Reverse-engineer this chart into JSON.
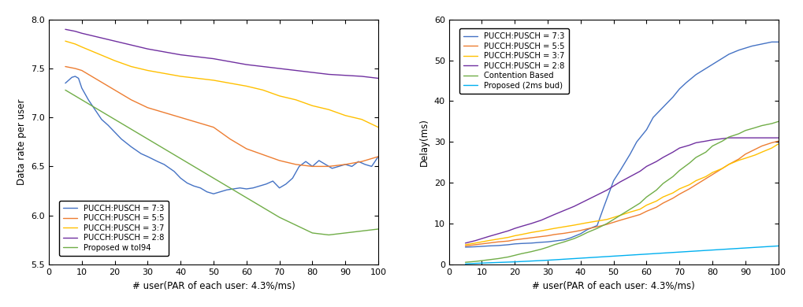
{
  "left": {
    "xlabel": "# user(PAR of each user: 4.3%/ms)",
    "ylabel": "Data rate per user",
    "xlim": [
      0,
      100
    ],
    "ylim": [
      5.5,
      8.0
    ],
    "yticks": [
      5.5,
      6.0,
      6.5,
      7.0,
      7.5,
      8.0
    ],
    "xticks": [
      0,
      10,
      20,
      30,
      40,
      50,
      60,
      70,
      80,
      90,
      100
    ],
    "series": [
      {
        "label": "PUCCH:PUSCH = 7:3",
        "color": "#4472C4",
        "x": [
          5,
          6,
          7,
          8,
          9,
          10,
          12,
          14,
          16,
          18,
          20,
          22,
          25,
          28,
          30,
          33,
          35,
          38,
          40,
          42,
          44,
          46,
          48,
          50,
          52,
          54,
          56,
          58,
          60,
          62,
          64,
          66,
          68,
          70,
          72,
          74,
          76,
          78,
          80,
          82,
          84,
          86,
          88,
          90,
          92,
          94,
          96,
          98,
          100
        ],
        "y": [
          7.35,
          7.38,
          7.41,
          7.42,
          7.4,
          7.3,
          7.18,
          7.08,
          6.98,
          6.92,
          6.85,
          6.78,
          6.7,
          6.63,
          6.6,
          6.55,
          6.52,
          6.45,
          6.38,
          6.33,
          6.3,
          6.28,
          6.24,
          6.22,
          6.24,
          6.26,
          6.27,
          6.28,
          6.27,
          6.28,
          6.3,
          6.32,
          6.35,
          6.28,
          6.32,
          6.38,
          6.5,
          6.55,
          6.5,
          6.56,
          6.52,
          6.48,
          6.5,
          6.52,
          6.5,
          6.55,
          6.52,
          6.5,
          6.6
        ]
      },
      {
        "label": "PUCCH:PUSCH = 5:5",
        "color": "#ED7D31",
        "x": [
          5,
          8,
          10,
          15,
          20,
          25,
          30,
          35,
          40,
          45,
          50,
          55,
          60,
          65,
          70,
          75,
          80,
          85,
          90,
          95,
          100
        ],
        "y": [
          7.52,
          7.5,
          7.48,
          7.38,
          7.28,
          7.18,
          7.1,
          7.05,
          7.0,
          6.95,
          6.9,
          6.78,
          6.68,
          6.62,
          6.56,
          6.52,
          6.5,
          6.5,
          6.52,
          6.55,
          6.6
        ]
      },
      {
        "label": "PUCCH:PUSCH = 3:7",
        "color": "#FFC000",
        "x": [
          5,
          8,
          10,
          15,
          20,
          25,
          30,
          35,
          40,
          45,
          50,
          55,
          60,
          65,
          70,
          75,
          80,
          85,
          90,
          95,
          100
        ],
        "y": [
          7.78,
          7.75,
          7.72,
          7.65,
          7.58,
          7.52,
          7.48,
          7.45,
          7.42,
          7.4,
          7.38,
          7.35,
          7.32,
          7.28,
          7.22,
          7.18,
          7.12,
          7.08,
          7.02,
          6.98,
          6.9
        ]
      },
      {
        "label": "PUCCH:PUSCH = 2:8",
        "color": "#7030A0",
        "x": [
          5,
          8,
          10,
          15,
          20,
          25,
          30,
          35,
          40,
          45,
          50,
          55,
          60,
          65,
          70,
          75,
          80,
          85,
          90,
          95,
          100
        ],
        "y": [
          7.9,
          7.88,
          7.86,
          7.82,
          7.78,
          7.74,
          7.7,
          7.67,
          7.64,
          7.62,
          7.6,
          7.57,
          7.54,
          7.52,
          7.5,
          7.48,
          7.46,
          7.44,
          7.43,
          7.42,
          7.4
        ]
      },
      {
        "label": "Proposed w tol94",
        "color": "#70AD47",
        "x": [
          5,
          8,
          10,
          15,
          20,
          25,
          30,
          35,
          40,
          45,
          50,
          55,
          60,
          65,
          70,
          75,
          80,
          85,
          90,
          95,
          100
        ],
        "y": [
          7.28,
          7.22,
          7.18,
          7.08,
          6.98,
          6.88,
          6.78,
          6.68,
          6.58,
          6.48,
          6.38,
          6.28,
          6.18,
          6.08,
          5.98,
          5.9,
          5.82,
          5.8,
          5.82,
          5.84,
          5.86
        ]
      }
    ],
    "legend_loc": "lower left"
  },
  "right": {
    "xlabel": "# user(PAR of each user: 4.3%/ms)",
    "ylabel": "Delay(ms)",
    "xlim": [
      0,
      100
    ],
    "ylim": [
      0,
      60
    ],
    "yticks": [
      0,
      10,
      20,
      30,
      40,
      50,
      60
    ],
    "xticks": [
      0,
      10,
      20,
      30,
      40,
      50,
      60,
      70,
      80,
      90,
      100
    ],
    "series": [
      {
        "label": "PUCCH:PUSCH = 7:3",
        "color": "#4472C4",
        "x": [
          5,
          8,
          10,
          12,
          15,
          18,
          20,
          22,
          25,
          28,
          30,
          32,
          35,
          37,
          40,
          42,
          45,
          47,
          50,
          52,
          55,
          57,
          60,
          62,
          65,
          68,
          70,
          72,
          75,
          78,
          80,
          82,
          85,
          88,
          90,
          92,
          95,
          98,
          100
        ],
        "y": [
          4.2,
          4.3,
          4.4,
          4.5,
          4.6,
          4.8,
          5.0,
          5.1,
          5.2,
          5.4,
          5.5,
          5.7,
          6.0,
          6.5,
          7.5,
          8.5,
          9.5,
          14.0,
          20.5,
          23.0,
          27.0,
          30.0,
          33.0,
          36.0,
          38.5,
          41.0,
          43.0,
          44.5,
          46.5,
          48.0,
          49.0,
          50.0,
          51.5,
          52.5,
          53.0,
          53.5,
          54.0,
          54.5,
          54.5
        ]
      },
      {
        "label": "PUCCH:PUSCH = 5:5",
        "color": "#ED7D31",
        "x": [
          5,
          8,
          10,
          12,
          15,
          18,
          20,
          22,
          25,
          28,
          30,
          32,
          35,
          38,
          40,
          42,
          45,
          48,
          50,
          52,
          55,
          58,
          60,
          63,
          65,
          68,
          70,
          73,
          75,
          78,
          80,
          83,
          85,
          88,
          90,
          93,
          95,
          98,
          100
        ],
        "y": [
          4.5,
          4.8,
          5.0,
          5.2,
          5.5,
          5.7,
          6.0,
          6.2,
          6.5,
          6.8,
          7.0,
          7.3,
          7.6,
          8.0,
          8.3,
          8.7,
          9.2,
          9.8,
          10.3,
          10.8,
          11.5,
          12.2,
          13.0,
          14.0,
          15.0,
          16.2,
          17.2,
          18.5,
          19.5,
          21.0,
          22.0,
          23.5,
          24.5,
          25.8,
          27.0,
          28.2,
          29.0,
          29.8,
          30.2
        ]
      },
      {
        "label": "PUCCH:PUSCH = 3:7",
        "color": "#FFC000",
        "x": [
          5,
          8,
          10,
          12,
          15,
          18,
          20,
          22,
          25,
          28,
          30,
          32,
          35,
          38,
          40,
          42,
          45,
          48,
          50,
          52,
          55,
          58,
          60,
          63,
          65,
          68,
          70,
          73,
          75,
          78,
          80,
          83,
          85,
          88,
          90,
          93,
          95,
          98,
          100
        ],
        "y": [
          4.8,
          5.2,
          5.5,
          5.8,
          6.2,
          6.6,
          7.0,
          7.3,
          7.8,
          8.2,
          8.5,
          8.8,
          9.2,
          9.6,
          9.9,
          10.2,
          10.6,
          11.0,
          11.5,
          12.0,
          12.8,
          13.5,
          14.5,
          15.5,
          16.5,
          17.5,
          18.5,
          19.5,
          20.5,
          21.5,
          22.5,
          23.5,
          24.5,
          25.5,
          26.0,
          26.8,
          27.5,
          28.5,
          29.5
        ]
      },
      {
        "label": "PUCCH:PUSCH = 2:8",
        "color": "#7030A0",
        "x": [
          5,
          8,
          10,
          12,
          15,
          18,
          20,
          22,
          25,
          28,
          30,
          32,
          35,
          38,
          40,
          42,
          45,
          48,
          50,
          52,
          55,
          58,
          60,
          63,
          65,
          68,
          70,
          73,
          75,
          78,
          80,
          83,
          85,
          88,
          90,
          93,
          95,
          98,
          100
        ],
        "y": [
          5.2,
          5.8,
          6.3,
          6.8,
          7.5,
          8.2,
          8.8,
          9.3,
          10.0,
          10.8,
          11.5,
          12.2,
          13.2,
          14.2,
          15.0,
          15.8,
          17.0,
          18.2,
          19.2,
          20.2,
          21.5,
          22.8,
          24.0,
          25.2,
          26.2,
          27.5,
          28.5,
          29.2,
          29.8,
          30.2,
          30.5,
          30.8,
          31.0,
          31.0,
          31.0,
          31.0,
          31.0,
          31.0,
          31.0
        ]
      },
      {
        "label": "Contention Based",
        "color": "#70AD47",
        "x": [
          5,
          8,
          10,
          12,
          15,
          18,
          20,
          22,
          25,
          28,
          30,
          32,
          35,
          38,
          40,
          42,
          45,
          48,
          50,
          52,
          55,
          58,
          60,
          63,
          65,
          68,
          70,
          73,
          75,
          78,
          80,
          83,
          85,
          88,
          90,
          93,
          95,
          98,
          100
        ],
        "y": [
          0.5,
          0.7,
          0.9,
          1.1,
          1.4,
          1.8,
          2.2,
          2.6,
          3.1,
          3.7,
          4.2,
          4.8,
          5.5,
          6.3,
          7.0,
          7.8,
          8.8,
          10.0,
          11.0,
          12.0,
          13.5,
          15.0,
          16.5,
          18.2,
          19.8,
          21.5,
          23.0,
          24.8,
          26.2,
          27.5,
          29.0,
          30.2,
          31.2,
          32.0,
          32.8,
          33.5,
          34.0,
          34.5,
          35.0
        ]
      },
      {
        "label": "Proposed (2ms bud)",
        "color": "#00B0F0",
        "x": [
          5,
          10,
          20,
          30,
          40,
          50,
          60,
          70,
          80,
          90,
          100
        ],
        "y": [
          0.1,
          0.3,
          0.6,
          1.0,
          1.5,
          2.0,
          2.5,
          3.0,
          3.5,
          4.0,
          4.5
        ]
      }
    ],
    "legend_loc": "upper left"
  }
}
